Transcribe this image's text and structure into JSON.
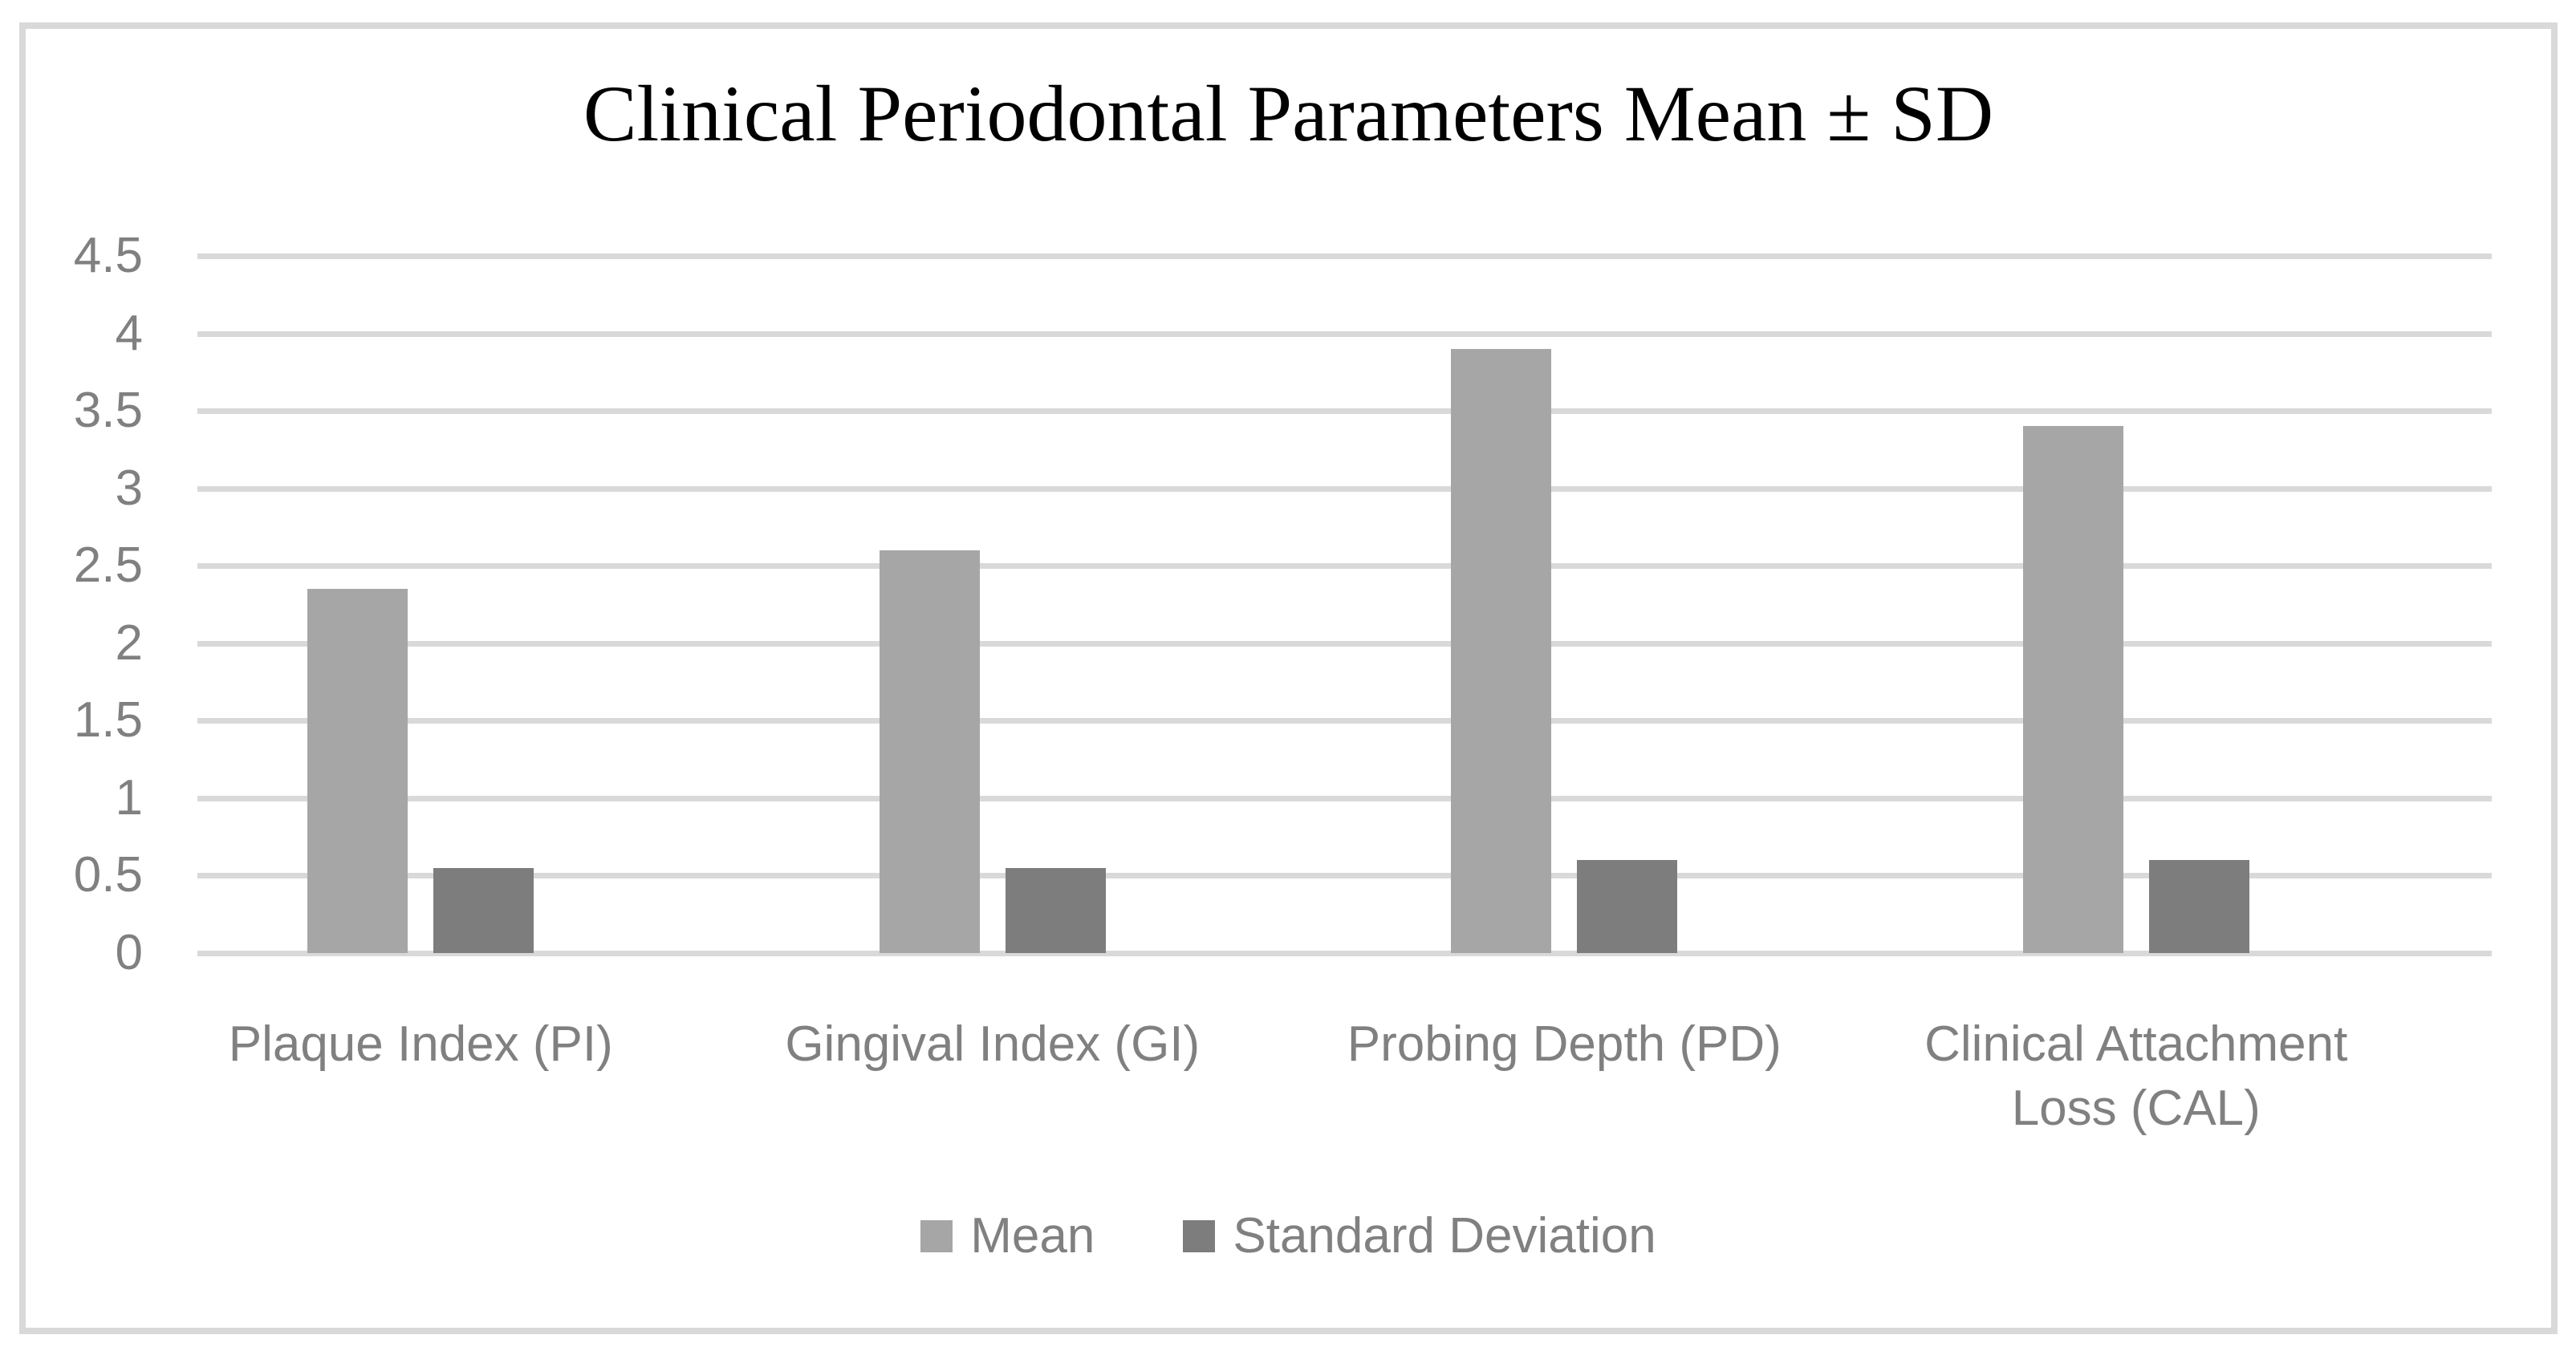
{
  "chart_data": {
    "type": "bar",
    "title": "Clinical Periodontal Parameters Mean ± SD",
    "categories": [
      "Plaque Index (PI)",
      "Gingival Index (GI)",
      "Probing Depth (PD)",
      "Clinical Attachment Loss (CAL)"
    ],
    "series": [
      {
        "name": "Mean",
        "color": "#a6a6a6",
        "values": [
          2.35,
          2.6,
          3.9,
          3.4
        ]
      },
      {
        "name": "Standard Deviation",
        "color": "#7d7d7d",
        "values": [
          0.55,
          0.55,
          0.6,
          0.6
        ]
      }
    ],
    "xlabel": "",
    "ylabel": "",
    "ylim": [
      0,
      4.5
    ],
    "ytick_labels": [
      "4.5",
      "4",
      "3.5",
      "3",
      "2.5",
      "2",
      "1.5",
      "1",
      "0.5",
      "0"
    ],
    "grid": true,
    "legend_position": "bottom",
    "legend_entries": [
      "Mean",
      "Standard Deviation"
    ]
  },
  "style": {
    "mean_bar_color": "#a6a6a6",
    "sd_bar_color": "#7d7d7d",
    "grid_color": "#d9d9d9",
    "axis_text_color": "#808080",
    "title_color": "#000000",
    "figure_border_color": "#d9d9d9",
    "background_color": "#ffffff"
  }
}
